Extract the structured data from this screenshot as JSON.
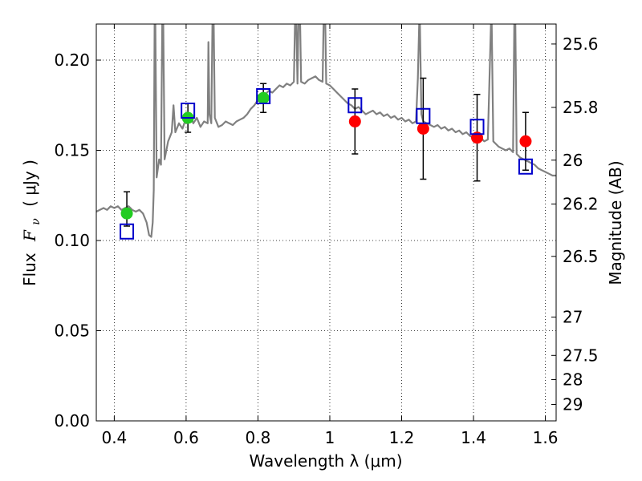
{
  "chart_data": {
    "type": "scatter",
    "xlabel": "Wavelength  λ (μm)",
    "ylabel_prefix": "Flux",
    "ylabel_symbol": "F",
    "ylabel_subscript": "ν",
    "ylabel_units": "( μJy )",
    "y2label": "Magnitude (AB)",
    "xlim": [
      0.35,
      1.63
    ],
    "ylim": [
      0.0,
      0.22
    ],
    "grid": true,
    "x_ticks": [
      {
        "value": 0.4,
        "label": "0.4"
      },
      {
        "value": 0.6,
        "label": "0.6"
      },
      {
        "value": 0.8,
        "label": "0.8"
      },
      {
        "value": 1.0,
        "label": "1"
      },
      {
        "value": 1.2,
        "label": "1.2"
      },
      {
        "value": 1.4,
        "label": "1.4"
      },
      {
        "value": 1.6,
        "label": "1.6"
      }
    ],
    "y_ticks": [
      {
        "value": 0.0,
        "label": "0.00"
      },
      {
        "value": 0.05,
        "label": "0.05"
      },
      {
        "value": 0.1,
        "label": "0.10"
      },
      {
        "value": 0.15,
        "label": "0.15"
      },
      {
        "value": 0.2,
        "label": "0.20"
      }
    ],
    "y2_ticks": [
      {
        "value": 25.6,
        "label": "25.6"
      },
      {
        "value": 25.8,
        "label": "25.8"
      },
      {
        "value": 26.0,
        "label": "26"
      },
      {
        "value": 26.2,
        "label": "26.2"
      },
      {
        "value": 26.5,
        "label": "26.5"
      },
      {
        "value": 27.0,
        "label": "27"
      },
      {
        "value": 27.5,
        "label": "27.5"
      },
      {
        "value": 28.0,
        "label": "28"
      },
      {
        "value": 29.0,
        "label": "29"
      }
    ],
    "model_spectrum": {
      "name": "model SED",
      "color": "#808080",
      "points": [
        [
          0.35,
          0.116
        ],
        [
          0.36,
          0.117
        ],
        [
          0.37,
          0.118
        ],
        [
          0.38,
          0.117
        ],
        [
          0.39,
          0.119
        ],
        [
          0.4,
          0.118
        ],
        [
          0.41,
          0.119
        ],
        [
          0.42,
          0.117
        ],
        [
          0.43,
          0.118
        ],
        [
          0.44,
          0.119
        ],
        [
          0.45,
          0.117
        ],
        [
          0.46,
          0.116
        ],
        [
          0.47,
          0.117
        ],
        [
          0.48,
          0.115
        ],
        [
          0.49,
          0.11
        ],
        [
          0.497,
          0.103
        ],
        [
          0.503,
          0.102
        ],
        [
          0.507,
          0.11
        ],
        [
          0.51,
          0.128
        ],
        [
          0.513,
          0.25
        ],
        [
          0.518,
          0.135
        ],
        [
          0.525,
          0.145
        ],
        [
          0.53,
          0.142
        ],
        [
          0.535,
          0.25
        ],
        [
          0.54,
          0.145
        ],
        [
          0.55,
          0.155
        ],
        [
          0.56,
          0.16
        ],
        [
          0.565,
          0.175
        ],
        [
          0.57,
          0.16
        ],
        [
          0.58,
          0.165
        ],
        [
          0.59,
          0.162
        ],
        [
          0.6,
          0.168
        ],
        [
          0.61,
          0.17
        ],
        [
          0.62,
          0.165
        ],
        [
          0.63,
          0.168
        ],
        [
          0.64,
          0.163
        ],
        [
          0.65,
          0.166
        ],
        [
          0.66,
          0.165
        ],
        [
          0.662,
          0.21
        ],
        [
          0.665,
          0.17
        ],
        [
          0.67,
          0.165
        ],
        [
          0.675,
          0.25
        ],
        [
          0.68,
          0.168
        ],
        [
          0.69,
          0.163
        ],
        [
          0.7,
          0.164
        ],
        [
          0.71,
          0.166
        ],
        [
          0.72,
          0.165
        ],
        [
          0.73,
          0.164
        ],
        [
          0.74,
          0.166
        ],
        [
          0.75,
          0.167
        ],
        [
          0.76,
          0.168
        ],
        [
          0.77,
          0.17
        ],
        [
          0.78,
          0.173
        ],
        [
          0.79,
          0.175
        ],
        [
          0.8,
          0.178
        ],
        [
          0.81,
          0.18
        ],
        [
          0.82,
          0.181
        ],
        [
          0.83,
          0.183
        ],
        [
          0.84,
          0.182
        ],
        [
          0.85,
          0.184
        ],
        [
          0.86,
          0.186
        ],
        [
          0.87,
          0.185
        ],
        [
          0.88,
          0.187
        ],
        [
          0.89,
          0.186
        ],
        [
          0.9,
          0.188
        ],
        [
          0.905,
          0.24
        ],
        [
          0.91,
          0.187
        ],
        [
          0.915,
          0.25
        ],
        [
          0.92,
          0.188
        ],
        [
          0.93,
          0.187
        ],
        [
          0.94,
          0.189
        ],
        [
          0.95,
          0.19
        ],
        [
          0.96,
          0.191
        ],
        [
          0.97,
          0.189
        ],
        [
          0.98,
          0.188
        ],
        [
          0.985,
          0.25
        ],
        [
          0.99,
          0.187
        ],
        [
          1.0,
          0.186
        ],
        [
          1.01,
          0.184
        ],
        [
          1.02,
          0.182
        ],
        [
          1.03,
          0.18
        ],
        [
          1.04,
          0.178
        ],
        [
          1.05,
          0.176
        ],
        [
          1.06,
          0.175
        ],
        [
          1.07,
          0.173
        ],
        [
          1.08,
          0.174
        ],
        [
          1.09,
          0.172
        ],
        [
          1.1,
          0.17
        ],
        [
          1.11,
          0.171
        ],
        [
          1.12,
          0.172
        ],
        [
          1.13,
          0.17
        ],
        [
          1.14,
          0.171
        ],
        [
          1.15,
          0.169
        ],
        [
          1.16,
          0.17
        ],
        [
          1.17,
          0.168
        ],
        [
          1.18,
          0.169
        ],
        [
          1.19,
          0.167
        ],
        [
          1.2,
          0.168
        ],
        [
          1.21,
          0.166
        ],
        [
          1.22,
          0.167
        ],
        [
          1.23,
          0.165
        ],
        [
          1.24,
          0.166
        ],
        [
          1.245,
          0.19
        ],
        [
          1.25,
          0.23
        ],
        [
          1.255,
          0.17
        ],
        [
          1.26,
          0.166
        ],
        [
          1.27,
          0.165
        ],
        [
          1.28,
          0.164
        ],
        [
          1.29,
          0.163
        ],
        [
          1.3,
          0.164
        ],
        [
          1.31,
          0.162
        ],
        [
          1.32,
          0.163
        ],
        [
          1.33,
          0.161
        ],
        [
          1.34,
          0.162
        ],
        [
          1.35,
          0.16
        ],
        [
          1.36,
          0.161
        ],
        [
          1.37,
          0.159
        ],
        [
          1.38,
          0.16
        ],
        [
          1.39,
          0.158
        ],
        [
          1.4,
          0.157
        ],
        [
          1.41,
          0.156
        ],
        [
          1.42,
          0.157
        ],
        [
          1.43,
          0.155
        ],
        [
          1.44,
          0.156
        ],
        [
          1.45,
          0.23
        ],
        [
          1.455,
          0.155
        ],
        [
          1.46,
          0.154
        ],
        [
          1.47,
          0.152
        ],
        [
          1.48,
          0.151
        ],
        [
          1.49,
          0.15
        ],
        [
          1.5,
          0.151
        ],
        [
          1.51,
          0.149
        ],
        [
          1.515,
          0.25
        ],
        [
          1.52,
          0.148
        ],
        [
          1.53,
          0.146
        ],
        [
          1.54,
          0.145
        ],
        [
          1.55,
          0.144
        ],
        [
          1.56,
          0.143
        ],
        [
          1.57,
          0.142
        ],
        [
          1.58,
          0.14
        ],
        [
          1.59,
          0.139
        ],
        [
          1.6,
          0.138
        ],
        [
          1.61,
          0.137
        ],
        [
          1.62,
          0.136
        ],
        [
          1.63,
          0.136
        ]
      ]
    },
    "series": [
      {
        "name": "observed (green)",
        "marker": "circle",
        "color": "#22cc22",
        "points": [
          {
            "x": 0.435,
            "y": 0.115,
            "yerr_low": 0.108,
            "yerr_high": 0.127
          },
          {
            "x": 0.605,
            "y": 0.168,
            "yerr_low": 0.16,
            "yerr_high": 0.176
          },
          {
            "x": 0.815,
            "y": 0.179,
            "yerr_low": 0.171,
            "yerr_high": 0.187
          }
        ]
      },
      {
        "name": "observed (red)",
        "marker": "circle",
        "color": "#ff0000",
        "points": [
          {
            "x": 1.07,
            "y": 0.166,
            "yerr_low": 0.148,
            "yerr_high": 0.184
          },
          {
            "x": 1.26,
            "y": 0.162,
            "yerr_low": 0.134,
            "yerr_high": 0.19
          },
          {
            "x": 1.41,
            "y": 0.157,
            "yerr_low": 0.133,
            "yerr_high": 0.181
          },
          {
            "x": 1.545,
            "y": 0.155,
            "yerr_low": 0.139,
            "yerr_high": 0.171
          }
        ]
      },
      {
        "name": "model photometry",
        "marker": "open-square",
        "color": "#0000cc",
        "points": [
          {
            "x": 0.435,
            "y": 0.105
          },
          {
            "x": 0.605,
            "y": 0.172
          },
          {
            "x": 0.815,
            "y": 0.18
          },
          {
            "x": 1.07,
            "y": 0.175
          },
          {
            "x": 1.26,
            "y": 0.169
          },
          {
            "x": 1.41,
            "y": 0.163
          },
          {
            "x": 1.545,
            "y": 0.141
          }
        ]
      }
    ]
  }
}
